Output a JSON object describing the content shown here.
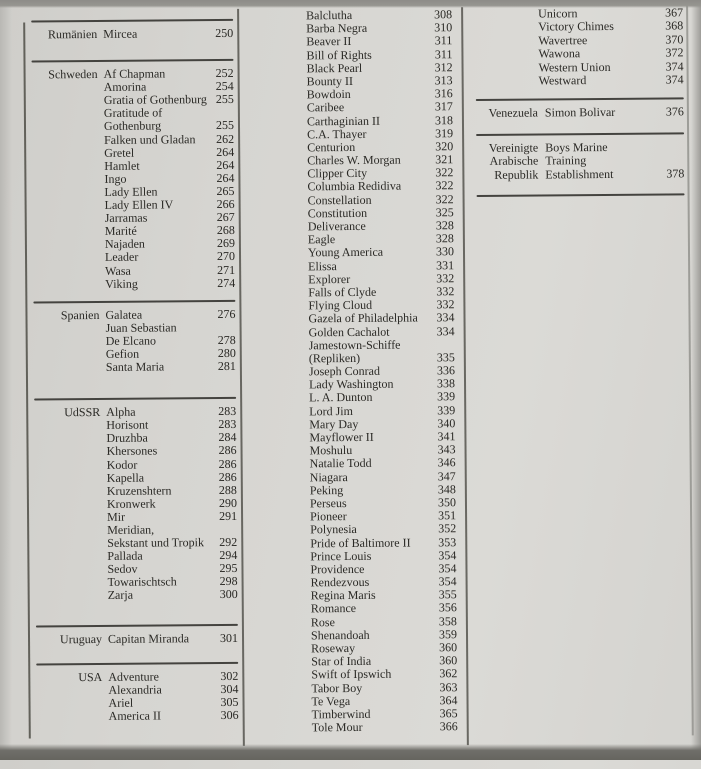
{
  "palette": {
    "page_background": "#d6d5d1",
    "photo_edge_top": "#8d8c88",
    "photo_edge_bottom": "#6b6a65",
    "rule_color": "#44433f",
    "text_color": "#2a2925"
  },
  "columns": [
    {
      "sections": [
        {
          "rule_above": true,
          "country": [
            "Rumänien"
          ],
          "entries": [
            {
              "name": [
                "Mircea"
              ],
              "page": "250"
            }
          ]
        },
        {
          "rule_above": true,
          "country": [
            "Schweden"
          ],
          "entries": [
            {
              "name": [
                "Af Chapman"
              ],
              "page": "252"
            },
            {
              "name": [
                "Amorina"
              ],
              "page": "254"
            },
            {
              "name": [
                "Gratia of Gothenburg"
              ],
              "page": "255"
            },
            {
              "name": [
                "Gratitude of",
                "Gothenburg"
              ],
              "page": "255"
            },
            {
              "name": [
                "Falken und Gladan"
              ],
              "page": "262"
            },
            {
              "name": [
                "Gretel"
              ],
              "page": "264"
            },
            {
              "name": [
                "Hamlet"
              ],
              "page": "264"
            },
            {
              "name": [
                "Ingo"
              ],
              "page": "264"
            },
            {
              "name": [
                "Lady Ellen"
              ],
              "page": "265"
            },
            {
              "name": [
                "Lady Ellen IV"
              ],
              "page": "266"
            },
            {
              "name": [
                "Jarramas"
              ],
              "page": "267"
            },
            {
              "name": [
                "Marité"
              ],
              "page": "268"
            },
            {
              "name": [
                "Najaden"
              ],
              "page": "269"
            },
            {
              "name": [
                "Leader"
              ],
              "page": "270"
            },
            {
              "name": [
                "Wasa"
              ],
              "page": "271"
            },
            {
              "name": [
                "Viking"
              ],
              "page": "274"
            }
          ]
        },
        {
          "rule_above": true,
          "country": [
            "Spanien"
          ],
          "entries": [
            {
              "name": [
                "Galatea"
              ],
              "page": "276"
            },
            {
              "name": [
                "Juan Sebastian",
                "De Elcano"
              ],
              "page": "278"
            },
            {
              "name": [
                "Gefion"
              ],
              "page": "280"
            },
            {
              "name": [
                "Santa Maria"
              ],
              "page": "281"
            }
          ]
        },
        {
          "rule_above": true,
          "country": [
            "UdSSR"
          ],
          "entries": [
            {
              "name": [
                "Alpha"
              ],
              "page": "283"
            },
            {
              "name": [
                "Horisont"
              ],
              "page": "283"
            },
            {
              "name": [
                "Druzhba"
              ],
              "page": "284"
            },
            {
              "name": [
                "Khersones"
              ],
              "page": "286"
            },
            {
              "name": [
                "Kodor"
              ],
              "page": "286"
            },
            {
              "name": [
                "Kapella"
              ],
              "page": "286"
            },
            {
              "name": [
                "Kruzenshtern"
              ],
              "page": "288"
            },
            {
              "name": [
                "Kronwerk"
              ],
              "page": "290"
            },
            {
              "name": [
                "Mir"
              ],
              "page": "291"
            },
            {
              "name": [
                "Meridian,",
                "Sekstant und Tropik"
              ],
              "page": "292"
            },
            {
              "name": [
                "Pallada"
              ],
              "page": "294"
            },
            {
              "name": [
                "Sedov"
              ],
              "page": "295"
            },
            {
              "name": [
                "Towarischtsch"
              ],
              "page": "298"
            },
            {
              "name": [
                "Zarja"
              ],
              "page": "300"
            }
          ]
        },
        {
          "rule_above": true,
          "country": [
            "Uruguay"
          ],
          "entries": [
            {
              "name": [
                "Capitan Miranda"
              ],
              "page": "301"
            }
          ]
        },
        {
          "rule_above": true,
          "country": [
            "USA"
          ],
          "entries": [
            {
              "name": [
                "Adventure"
              ],
              "page": "302"
            },
            {
              "name": [
                "Alexandria"
              ],
              "page": "304"
            },
            {
              "name": [
                "Ariel"
              ],
              "page": "305"
            },
            {
              "name": [
                "America II"
              ],
              "page": "306"
            }
          ]
        }
      ]
    },
    {
      "sections": [
        {
          "rule_above": false,
          "country": [],
          "entries": [
            {
              "name": [
                "Balclutha"
              ],
              "page": "308"
            },
            {
              "name": [
                "Barba Negra"
              ],
              "page": "310"
            },
            {
              "name": [
                "Beaver II"
              ],
              "page": "311"
            },
            {
              "name": [
                "Bill of Rights"
              ],
              "page": "311"
            },
            {
              "name": [
                "Black Pearl"
              ],
              "page": "312"
            },
            {
              "name": [
                "Bounty II"
              ],
              "page": "313"
            },
            {
              "name": [
                "Bowdoin"
              ],
              "page": "316"
            },
            {
              "name": [
                "Caribee"
              ],
              "page": "317"
            },
            {
              "name": [
                "Carthaginian II"
              ],
              "page": "318"
            },
            {
              "name": [
                "C.A. Thayer"
              ],
              "page": "319"
            },
            {
              "name": [
                "Centurion"
              ],
              "page": "320"
            },
            {
              "name": [
                "Charles W. Morgan"
              ],
              "page": "321"
            },
            {
              "name": [
                "Clipper City"
              ],
              "page": "322"
            },
            {
              "name": [
                "Columbia Redidiva"
              ],
              "page": "322"
            },
            {
              "name": [
                "Constellation"
              ],
              "page": "322"
            },
            {
              "name": [
                "Constitution"
              ],
              "page": "325"
            },
            {
              "name": [
                "Deliverance"
              ],
              "page": "328"
            },
            {
              "name": [
                "Eagle"
              ],
              "page": "328"
            },
            {
              "name": [
                "Young America"
              ],
              "page": "330"
            },
            {
              "name": [
                "Elissa"
              ],
              "page": "331"
            },
            {
              "name": [
                "Explorer"
              ],
              "page": "332"
            },
            {
              "name": [
                "Falls of Clyde"
              ],
              "page": "332"
            },
            {
              "name": [
                "Flying Cloud"
              ],
              "page": "332"
            },
            {
              "name": [
                "Gazela of Philadelphia"
              ],
              "page": "334"
            },
            {
              "name": [
                "Golden Cachalot"
              ],
              "page": "334"
            },
            {
              "name": [
                "Jamestown-Schiffe",
                "(Repliken)"
              ],
              "page": "335"
            },
            {
              "name": [
                "Joseph Conrad"
              ],
              "page": "336"
            },
            {
              "name": [
                "Lady Washington"
              ],
              "page": "338"
            },
            {
              "name": [
                "L. A. Dunton"
              ],
              "page": "339"
            },
            {
              "name": [
                "Lord Jim"
              ],
              "page": "339"
            },
            {
              "name": [
                "Mary Day"
              ],
              "page": "340"
            },
            {
              "name": [
                "Mayflower II"
              ],
              "page": "341"
            },
            {
              "name": [
                "Moshulu"
              ],
              "page": "343"
            },
            {
              "name": [
                "Natalie Todd"
              ],
              "page": "346"
            },
            {
              "name": [
                "Niagara"
              ],
              "page": "347"
            },
            {
              "name": [
                "Peking"
              ],
              "page": "348"
            },
            {
              "name": [
                "Perseus"
              ],
              "page": "350"
            },
            {
              "name": [
                "Pioneer"
              ],
              "page": "351"
            },
            {
              "name": [
                "Polynesia"
              ],
              "page": "352"
            },
            {
              "name": [
                "Pride of Baltimore II"
              ],
              "page": "353"
            },
            {
              "name": [
                "Prince Louis"
              ],
              "page": "354"
            },
            {
              "name": [
                "Providence"
              ],
              "page": "354"
            },
            {
              "name": [
                "Rendezvous"
              ],
              "page": "354"
            },
            {
              "name": [
                "Regina Maris"
              ],
              "page": "355"
            },
            {
              "name": [
                "Romance"
              ],
              "page": "356"
            },
            {
              "name": [
                "Rose"
              ],
              "page": "358"
            },
            {
              "name": [
                "Shenandoah"
              ],
              "page": "359"
            },
            {
              "name": [
                "Roseway"
              ],
              "page": "360"
            },
            {
              "name": [
                "Star of India"
              ],
              "page": "360"
            },
            {
              "name": [
                "Swift of Ipswich"
              ],
              "page": "362"
            },
            {
              "name": [
                "Tabor Boy"
              ],
              "page": "363"
            },
            {
              "name": [
                "Te Vega"
              ],
              "page": "364"
            },
            {
              "name": [
                "Timberwind"
              ],
              "page": "365"
            },
            {
              "name": [
                "Tole Mour"
              ],
              "page": "366"
            }
          ]
        }
      ]
    },
    {
      "sections": [
        {
          "rule_above": false,
          "country": [],
          "entries": [
            {
              "name": [
                "Unicorn"
              ],
              "page": "367"
            },
            {
              "name": [
                "Victory Chimes"
              ],
              "page": "368"
            },
            {
              "name": [
                "Wavertree"
              ],
              "page": "370"
            },
            {
              "name": [
                "Wawona"
              ],
              "page": "372"
            },
            {
              "name": [
                "Western Union"
              ],
              "page": "374"
            },
            {
              "name": [
                "Westward"
              ],
              "page": "374"
            }
          ]
        },
        {
          "rule_above": true,
          "country": [
            "Venezuela"
          ],
          "entries": [
            {
              "name": [
                "Simon Bolivar"
              ],
              "page": "376"
            }
          ]
        },
        {
          "rule_above": true,
          "rule_below": true,
          "country": [
            "Vereinigte",
            "Arabische",
            "Republik"
          ],
          "entries": [
            {
              "name": [
                "Boys Marine",
                "Training",
                "Establishment"
              ],
              "page": "378"
            }
          ]
        }
      ]
    }
  ]
}
